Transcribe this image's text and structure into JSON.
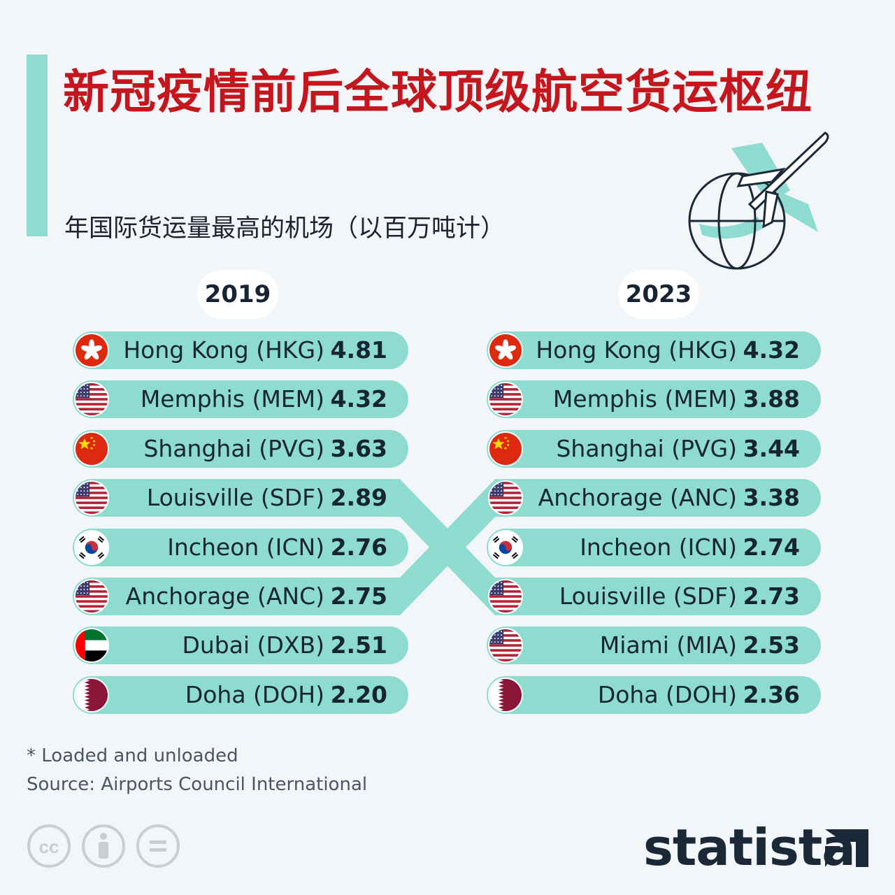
{
  "header": {
    "title": "新冠疫情前后全球顶级航空货运枢纽",
    "subtitle": "年国际货运量最高的机场（以百万吨计）"
  },
  "icons": {
    "header_icon": "globe-with-airplane-icon",
    "license": [
      "cc-icon",
      "attribution-icon",
      "no-derivatives-icon"
    ],
    "brand": "statista-logo"
  },
  "colors": {
    "title": "#c4161c",
    "bar": "#8ddccf",
    "text": "#162433",
    "background": "#f2f6f9"
  },
  "chart_data": {
    "type": "table",
    "title": "新冠疫情前后全球顶级航空货运枢纽",
    "subtitle": "年国际货运量最高的机场（以百万吨计）",
    "columns": [
      {
        "year": "2019",
        "rows": [
          {
            "rank": 1,
            "airport": "Hong Kong (HKG)",
            "flag": "hong-kong",
            "value": "4.81"
          },
          {
            "rank": 2,
            "airport": "Memphis (MEM)",
            "flag": "usa",
            "value": "4.32"
          },
          {
            "rank": 3,
            "airport": "Shanghai (PVG)",
            "flag": "china",
            "value": "3.63"
          },
          {
            "rank": 4,
            "airport": "Louisville (SDF)",
            "flag": "usa",
            "value": "2.89"
          },
          {
            "rank": 5,
            "airport": "Incheon (ICN)",
            "flag": "south-korea",
            "value": "2.76"
          },
          {
            "rank": 6,
            "airport": "Anchorage (ANC)",
            "flag": "usa",
            "value": "2.75"
          },
          {
            "rank": 7,
            "airport": "Dubai (DXB)",
            "flag": "uae",
            "value": "2.51"
          },
          {
            "rank": 8,
            "airport": "Doha (DOH)",
            "flag": "qatar",
            "value": "2.20"
          }
        ]
      },
      {
        "year": "2023",
        "rows": [
          {
            "rank": 1,
            "airport": "Hong Kong (HKG)",
            "flag": "hong-kong",
            "value": "4.32"
          },
          {
            "rank": 2,
            "airport": "Memphis (MEM)",
            "flag": "usa",
            "value": "3.88"
          },
          {
            "rank": 3,
            "airport": "Shanghai (PVG)",
            "flag": "china",
            "value": "3.44"
          },
          {
            "rank": 4,
            "airport": "Anchorage (ANC)",
            "flag": "usa",
            "value": "3.38"
          },
          {
            "rank": 5,
            "airport": "Incheon (ICN)",
            "flag": "south-korea",
            "value": "2.74"
          },
          {
            "rank": 6,
            "airport": "Louisville (SDF)",
            "flag": "usa",
            "value": "2.73"
          },
          {
            "rank": 7,
            "airport": "Miami (MIA)",
            "flag": "usa",
            "value": "2.53"
          },
          {
            "rank": 8,
            "airport": "Doha (DOH)",
            "flag": "qatar",
            "value": "2.36"
          }
        ]
      }
    ],
    "rank_changes": [
      {
        "airport": "Louisville (SDF)",
        "from_rank": 4,
        "to_rank": 6
      },
      {
        "airport": "Anchorage (ANC)",
        "from_rank": 6,
        "to_rank": 4
      }
    ]
  },
  "footer": {
    "note": "* Loaded and unloaded",
    "source": "Source: Airports Council International",
    "brand": "statista"
  }
}
